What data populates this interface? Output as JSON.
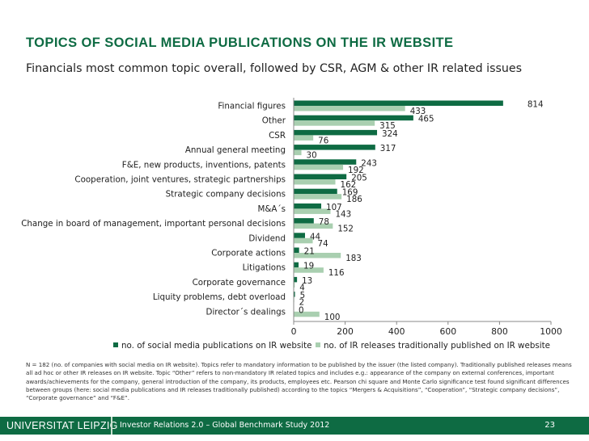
{
  "slide": {
    "title": "TOPICS OF SOCIAL MEDIA PUBLICATIONS ON THE IR WEBSITE",
    "subtitle": "Financials most common topic overall, followed by CSR, AGM & other IR related issues",
    "footnote": "N = 182 (no. of companies with social media on IR website). Topics refer to mandatory information to be published by the issuer (the listed company). Traditionally published releases means all ad hoc or other IR releases on IR website. Topic “Other” refers to non-mandatory IR related topics and includes e.g.: appearance of the company on external conferences, important awards/achievements for the company, general introduction of the company, its products, employees etc. Pearson chi square and Monte Carlo significance test found significant differences between groups (here: social media publications and IR releases traditionally published) according to the topics “Mergers & Acquisitions”, “Cooperation”, “Strategic company decisions”, “Corporate governance” and “F&E”."
  },
  "footer": {
    "logo": "UNIVERSITAT LEIPZIG",
    "text": "Investor Relations 2.0 – Global Benchmark Study 2012",
    "page": "23"
  },
  "chart_data": {
    "type": "bar",
    "orientation": "horizontal",
    "categories": [
      "Financial figures",
      "Other",
      "CSR",
      "Annual general meeting",
      "F&E, new products, inventions, patents",
      "Cooperation, joint ventures, strategic partnerships",
      "Strategic company decisions",
      "M&A´s",
      "Change in board of management, important personal decisions",
      "Dividend",
      "Corporate actions",
      "Litigations",
      "Corporate governance",
      "Liquity problems, debt overload",
      "Director´s dealings"
    ],
    "series": [
      {
        "name": "no. of social media publications on IR website",
        "color": "#0e6b43",
        "values": [
          814,
          465,
          324,
          317,
          243,
          205,
          169,
          107,
          78,
          44,
          21,
          19,
          13,
          5,
          0
        ]
      },
      {
        "name": "no. of IR releases traditionally published on IR website",
        "color": "#a9cfb0",
        "values": [
          433,
          315,
          76,
          30,
          192,
          162,
          186,
          143,
          152,
          74,
          183,
          116,
          4,
          2,
          100
        ]
      }
    ],
    "xlim": [
      0,
      1000
    ],
    "xticks": [
      "0",
      "200",
      "400",
      "600",
      "800",
      "1000"
    ],
    "grid": false,
    "legend_position": "bottom"
  }
}
